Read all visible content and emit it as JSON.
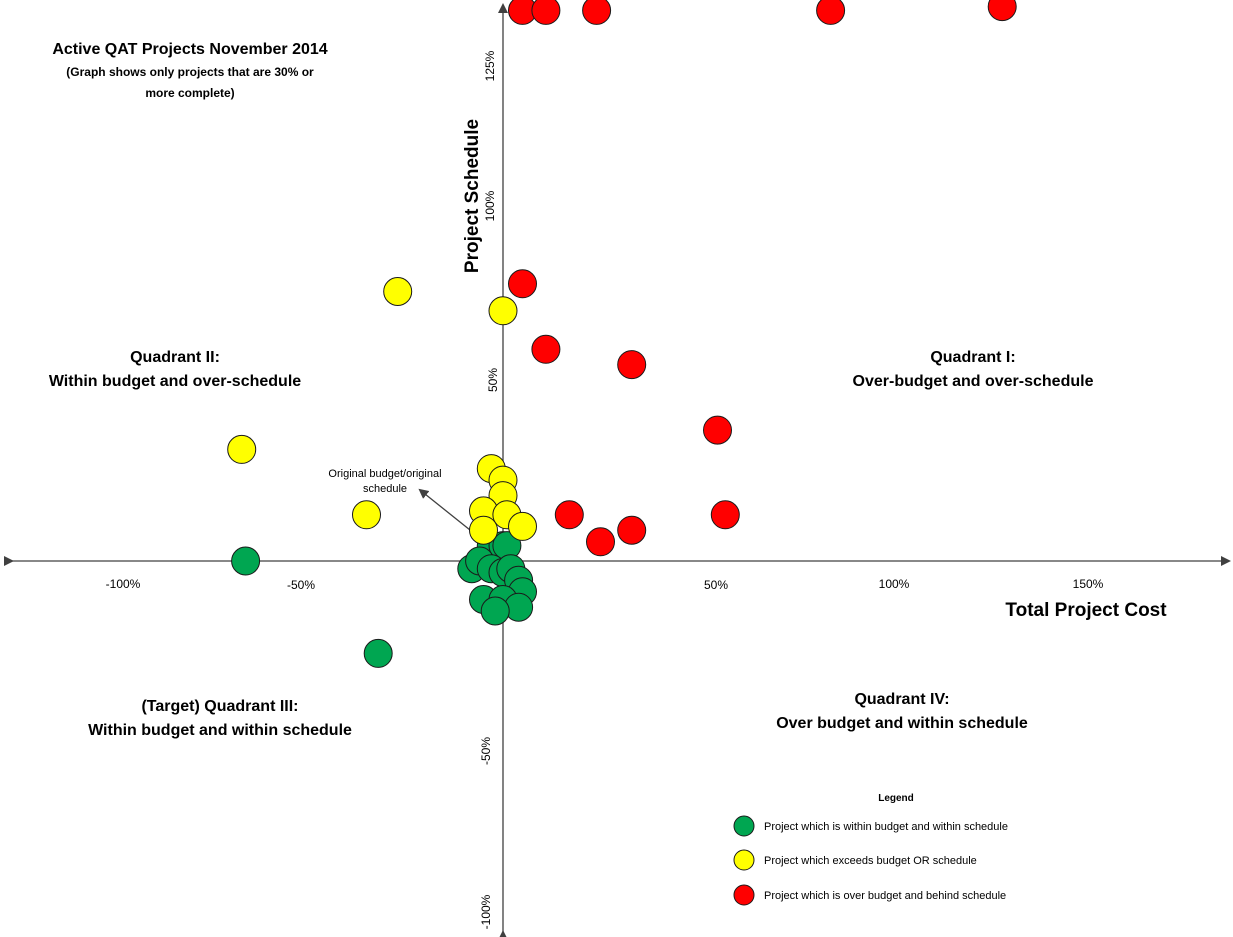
{
  "header": {
    "title": "Active QAT Projects November 2014",
    "subtitle_line1": "(Graph shows only projects that are 30% or",
    "subtitle_line2": "more complete)"
  },
  "quadrants": {
    "q1": {
      "line1": "Quadrant I:",
      "line2": "Over-budget and over-schedule"
    },
    "q2": {
      "line1": "Quadrant II:",
      "line2": "Within budget and over-schedule"
    },
    "q3": {
      "line1": "(Target) Quadrant III:",
      "line2": "Within budget and within schedule"
    },
    "q4": {
      "line1": "Quadrant IV:",
      "line2": "Over budget and within schedule"
    }
  },
  "annotation": {
    "line1": "Original budget/original",
    "line2": "schedule"
  },
  "legend": {
    "title": "Legend",
    "items": [
      {
        "label": "Project which is within budget and within schedule",
        "color": "#00a651"
      },
      {
        "label": "Project which exceeds budget OR schedule",
        "color": "#ffff00"
      },
      {
        "label": "Project which is over budget and behind schedule",
        "color": "#ff0000"
      }
    ]
  },
  "chart_data": {
    "type": "scatter",
    "xlabel": "Total Project Cost",
    "ylabel": "Project Schedule",
    "x_ticks": [
      "-100%",
      "-50%",
      "50%",
      "100%",
      "150%"
    ],
    "y_ticks": [
      "125%",
      "100%",
      "50%",
      "-50%",
      "-100%"
    ],
    "series": [
      {
        "color": "#00a651",
        "points": [
          [
            -66,
            0
          ],
          [
            -32,
            -24
          ],
          [
            -8,
            -2
          ],
          [
            -3,
            4
          ],
          [
            0,
            4
          ],
          [
            1,
            4
          ],
          [
            -6,
            0
          ],
          [
            -3,
            -2
          ],
          [
            0,
            -3
          ],
          [
            2,
            -2
          ],
          [
            4,
            -5
          ],
          [
            5,
            -8
          ],
          [
            -5,
            -10
          ],
          [
            0,
            -10
          ],
          [
            4,
            -12
          ],
          [
            -2,
            -13
          ]
        ]
      },
      {
        "color": "#ffff00",
        "points": [
          [
            -27,
            70
          ],
          [
            0,
            65
          ],
          [
            -67,
            29
          ],
          [
            -35,
            12
          ],
          [
            -3,
            24
          ],
          [
            0,
            21
          ],
          [
            0,
            17
          ],
          [
            -5,
            13
          ],
          [
            1,
            12
          ],
          [
            5,
            9
          ],
          [
            -5,
            8
          ]
        ]
      },
      {
        "color": "#ff0000",
        "points": [
          [
            5,
            143
          ],
          [
            11,
            143
          ],
          [
            24,
            143
          ],
          [
            84,
            143
          ],
          [
            128,
            144
          ],
          [
            5,
            72
          ],
          [
            11,
            55
          ],
          [
            33,
            51
          ],
          [
            55,
            34
          ],
          [
            57,
            12
          ],
          [
            17,
            12
          ],
          [
            25,
            5
          ],
          [
            33,
            8
          ]
        ]
      }
    ]
  }
}
